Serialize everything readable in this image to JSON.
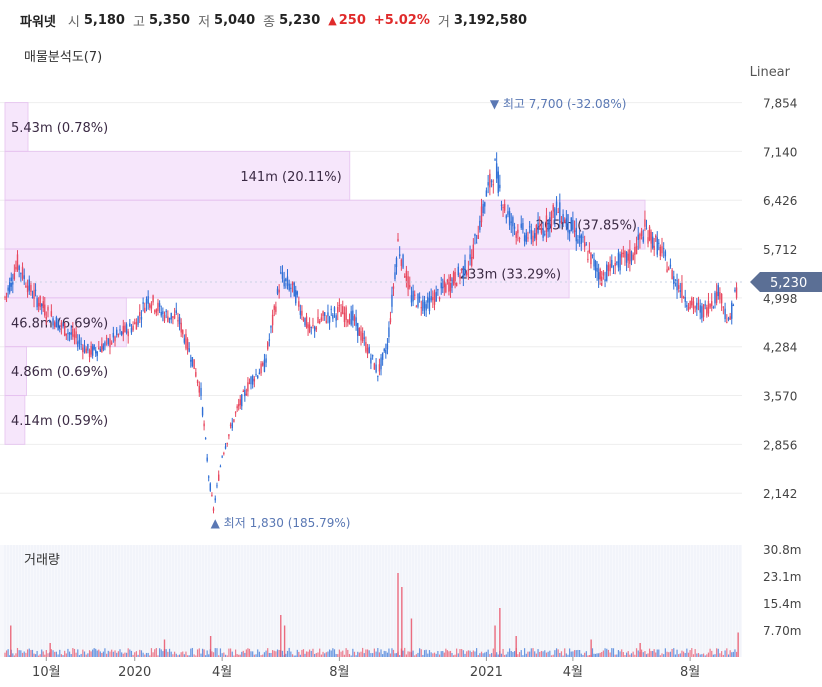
{
  "header": {
    "name": "파워넷",
    "open_label": "시",
    "open": "5,180",
    "high_label": "고",
    "high": "5,350",
    "low_label": "저",
    "low": "5,040",
    "close_label": "종",
    "close": "5,230",
    "change": "250",
    "change_pct": "+5.02%",
    "volume_label": "거",
    "volume": "3,192,580"
  },
  "subtitle": "매물분석도(7)",
  "scale_label": "Linear",
  "volume_title": "거래량",
  "colors": {
    "up": "#e8485f",
    "down": "#2f6fd6",
    "profile": "#f5e2fb",
    "profile_border": "#e6c2f0",
    "label_bg": "#5b6f95"
  },
  "chart_data": [
    {
      "type": "candlestick",
      "title": "매물분석도(7)",
      "y_scale": "linear",
      "yticks": [
        2142,
        2856,
        3570,
        4284,
        4998,
        5712,
        6426,
        7140,
        7854
      ],
      "ytick_labels": [
        "2,142",
        "2,856",
        "3,570",
        "4,284",
        "4,998",
        "5,712",
        "6,426",
        "7,140",
        "7,854"
      ],
      "ylim": [
        1750,
        7950
      ],
      "xtick_labels": [
        "10월",
        "2020",
        "4월",
        "8월",
        "2021",
        "4월",
        "8월"
      ],
      "price_series": [
        [
          "2019-08-19",
          5000
        ],
        [
          "2019-09-01",
          5500
        ],
        [
          "2019-09-15",
          5100
        ],
        [
          "2019-10-01",
          4800
        ],
        [
          "2019-10-15",
          4600
        ],
        [
          "2019-11-01",
          4400
        ],
        [
          "2019-11-15",
          4200
        ],
        [
          "2019-12-01",
          4300
        ],
        [
          "2019-12-15",
          4450
        ],
        [
          "2020-01-01",
          4600
        ],
        [
          "2020-01-15",
          5000
        ],
        [
          "2020-02-01",
          4750
        ],
        [
          "2020-02-15",
          4700
        ],
        [
          "2020-03-01",
          4100
        ],
        [
          "2020-03-10",
          3600
        ],
        [
          "2020-03-18",
          2400
        ],
        [
          "2020-03-23",
          1900
        ],
        [
          "2020-04-01",
          2700
        ],
        [
          "2020-04-15",
          3300
        ],
        [
          "2020-05-01",
          3800
        ],
        [
          "2020-05-15",
          4000
        ],
        [
          "2020-06-01",
          5300
        ],
        [
          "2020-06-15",
          5100
        ],
        [
          "2020-07-01",
          4500
        ],
        [
          "2020-07-15",
          4700
        ],
        [
          "2020-08-01",
          4800
        ],
        [
          "2020-08-15",
          4700
        ],
        [
          "2020-09-01",
          4200
        ],
        [
          "2020-09-10",
          3900
        ],
        [
          "2020-09-20",
          4300
        ],
        [
          "2020-10-01",
          5800
        ],
        [
          "2020-10-15",
          5000
        ],
        [
          "2020-11-01",
          4900
        ],
        [
          "2020-11-15",
          5100
        ],
        [
          "2020-12-01",
          5300
        ],
        [
          "2020-12-15",
          5500
        ],
        [
          "2021-01-01",
          6500
        ],
        [
          "2021-01-10",
          6900
        ],
        [
          "2021-01-20",
          6300
        ],
        [
          "2021-02-01",
          6000
        ],
        [
          "2021-02-15",
          5900
        ],
        [
          "2021-03-01",
          6000
        ],
        [
          "2021-03-15",
          6300
        ],
        [
          "2021-04-01",
          6000
        ],
        [
          "2021-04-15",
          5700
        ],
        [
          "2021-05-01",
          5300
        ],
        [
          "2021-05-15",
          5500
        ],
        [
          "2021-06-01",
          5600
        ],
        [
          "2021-06-15",
          6000
        ],
        [
          "2021-07-01",
          5700
        ],
        [
          "2021-07-15",
          5300
        ],
        [
          "2021-08-01",
          4900
        ],
        [
          "2021-08-15",
          4800
        ],
        [
          "2021-09-01",
          5100
        ],
        [
          "2021-09-10",
          4600
        ],
        [
          "2021-09-20",
          5230
        ]
      ],
      "max_marker": {
        "label": "최고",
        "value": "7,700",
        "pct": "(-32.08%)",
        "date": "2021-01-15"
      },
      "min_marker": {
        "label": "최저",
        "value": "1,830",
        "pct": "(185.79%)",
        "date": "2020-03-20"
      },
      "current_label": "5,230",
      "current_value": 5230,
      "profile": [
        {
          "low": 7140,
          "high": 7854,
          "volume_label": "5.43m",
          "pct_label": "(0.78%)",
          "pct": 0.78
        },
        {
          "low": 6426,
          "high": 7140,
          "volume_label": "141m",
          "pct_label": "(20.11%)",
          "pct": 20.11
        },
        {
          "low": 5712,
          "high": 6426,
          "volume_label": "265m",
          "pct_label": "(37.85%)",
          "pct": 37.85
        },
        {
          "low": 4998,
          "high": 5712,
          "volume_label": "233m",
          "pct_label": "(33.29%)",
          "pct": 33.29
        },
        {
          "low": 4284,
          "high": 4998,
          "volume_label": "46.8m",
          "pct_label": "(6.69%)",
          "pct": 6.69
        },
        {
          "low": 3570,
          "high": 4284,
          "volume_label": "4.86m",
          "pct_label": "(0.69%)",
          "pct": 0.69
        },
        {
          "low": 2856,
          "high": 3570,
          "volume_label": "4.14m",
          "pct_label": "(0.59%)",
          "pct": 0.59
        }
      ]
    },
    {
      "type": "bar",
      "title": "거래량",
      "yticks": [
        7.7,
        15.4,
        23.1,
        30.8
      ],
      "ytick_labels": [
        "7.70m",
        "15.4m",
        "23.1m",
        "30.8m"
      ],
      "ylim": [
        0,
        32
      ],
      "volume_spikes": [
        [
          "2019-08-25",
          9
        ],
        [
          "2019-10-05",
          4
        ],
        [
          "2020-02-01",
          5
        ],
        [
          "2020-03-20",
          6
        ],
        [
          "2020-06-01",
          12
        ],
        [
          "2020-06-05",
          9
        ],
        [
          "2020-10-01",
          24
        ],
        [
          "2020-10-05",
          20
        ],
        [
          "2020-10-15",
          11
        ],
        [
          "2021-01-10",
          9
        ],
        [
          "2021-01-15",
          14
        ],
        [
          "2021-02-01",
          6
        ],
        [
          "2021-04-20",
          5
        ],
        [
          "2021-06-10",
          4
        ],
        [
          "2021-09-20",
          7
        ]
      ]
    }
  ]
}
